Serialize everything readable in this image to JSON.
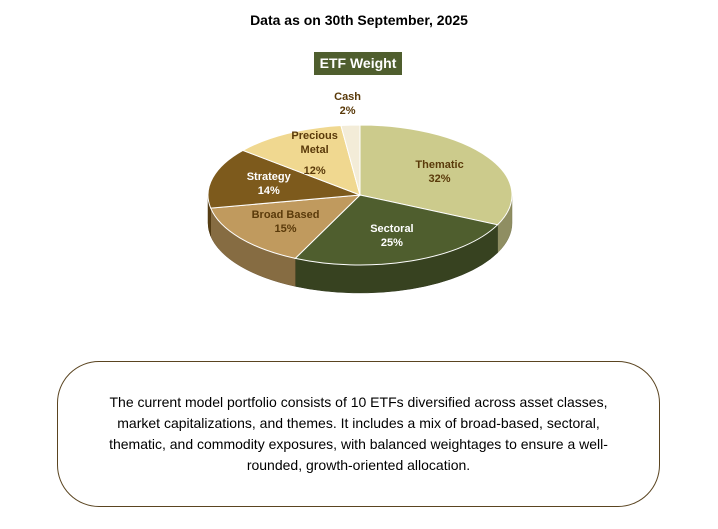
{
  "chart_data": {
    "type": "pie",
    "date_heading": "Data as on 30th September, 2025",
    "title": "ETF Weight",
    "categories": [
      "Thematic",
      "Sectoral",
      "Broad Based",
      "Strategy",
      "Precious Metal",
      "Cash"
    ],
    "values": [
      32,
      25,
      15,
      14,
      12,
      2
    ],
    "value_labels": [
      "32%",
      "25%",
      "15%",
      "14%",
      "12%",
      "2%"
    ],
    "colors": [
      "#cccb8c",
      "#4f5e2e",
      "#c09a5e",
      "#7d5a1c",
      "#f0d890",
      "#f3ecd8"
    ]
  },
  "note": "The current model portfolio consists of 10 ETFs diversified across asset classes, market capitalizations, and themes. It includes a mix of broad-based, sectoral, thematic, and commodity exposures, with balanced weightages to ensure a well-rounded, growth-oriented allocation."
}
